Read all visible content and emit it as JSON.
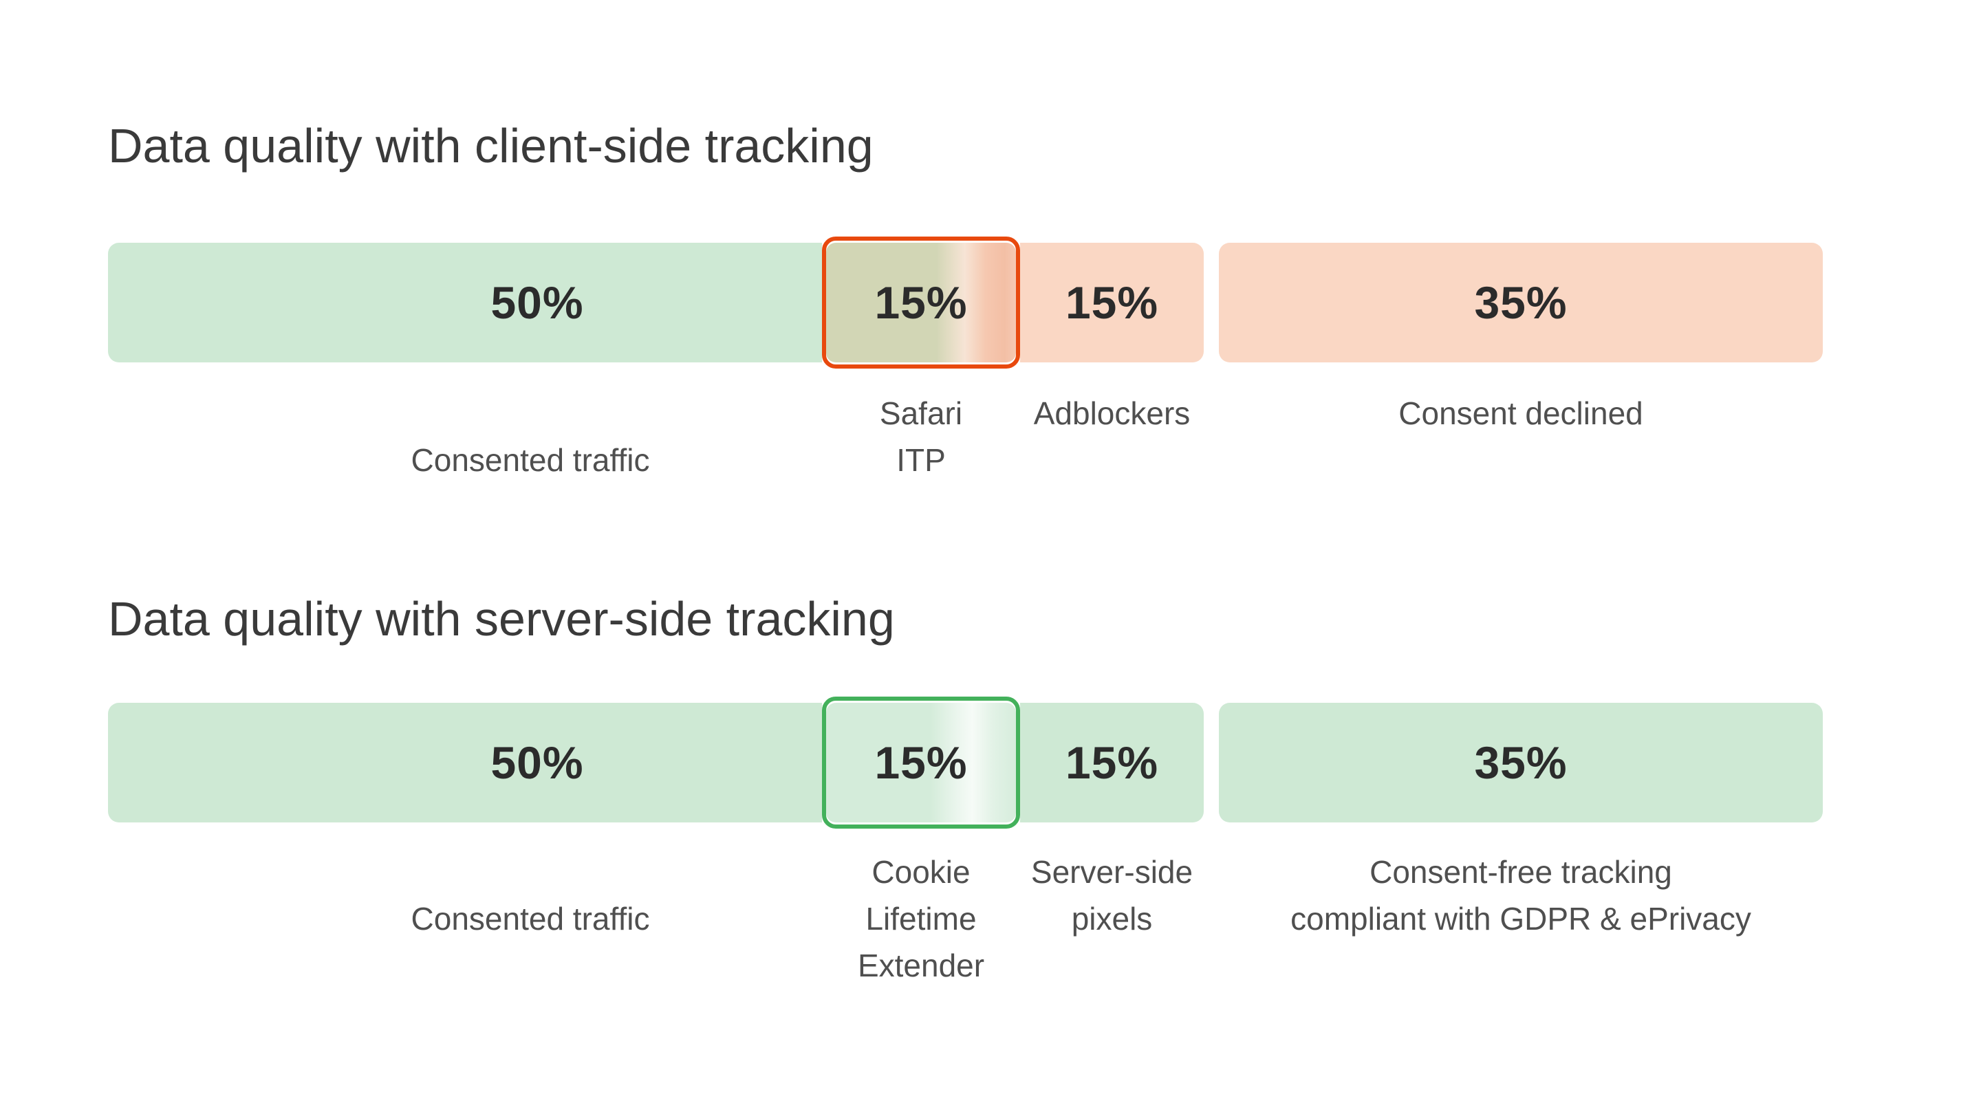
{
  "page": {
    "background": "#ffffff"
  },
  "colors": {
    "green_segment": "#cee9d4",
    "pink_segment": "#fad7c4",
    "client_highlight_border": "#e8490e",
    "server_highlight_border": "#43b15b",
    "olive_blend": "#d2d6b5",
    "salmon_blend": "#f5c2a9",
    "title_text": "#3a3a3a",
    "label_text": "#4f4f4f",
    "value_text": "#2b2b2b"
  },
  "chart_data": [
    {
      "type": "bar",
      "variant": "horizontal-stacked",
      "title": "Data quality with client-side tracking",
      "unit": "%",
      "grid": false,
      "legend_position": "none",
      "segments": [
        {
          "value": 50,
          "value_label": "50%",
          "label": "Consented traffic",
          "fill": "green",
          "highlighted": false
        },
        {
          "value": 15,
          "value_label": "15%",
          "label": "Safari\nITP",
          "fill": "green-to-pink-gradient",
          "highlighted": true,
          "highlight_border_color": "#e8490e"
        },
        {
          "value": 15,
          "value_label": "15%",
          "label": "Adblockers",
          "fill": "pink",
          "highlighted": false
        },
        {
          "value": 35,
          "value_label": "35%",
          "label": "Consent declined",
          "fill": "pink",
          "highlighted": false
        }
      ]
    },
    {
      "type": "bar",
      "variant": "horizontal-stacked",
      "title": "Data quality with server-side tracking",
      "unit": "%",
      "grid": false,
      "legend_position": "none",
      "segments": [
        {
          "value": 50,
          "value_label": "50%",
          "label": "Consented traffic",
          "fill": "green",
          "highlighted": false
        },
        {
          "value": 15,
          "value_label": "15%",
          "label": "Cookie\nLifetime\nExtender",
          "fill": "green-sheen-gradient",
          "highlighted": true,
          "highlight_border_color": "#43b15b"
        },
        {
          "value": 15,
          "value_label": "15%",
          "label": "Server-side\npixels",
          "fill": "green",
          "highlighted": false
        },
        {
          "value": 35,
          "value_label": "35%",
          "label": "Consent-free tracking\ncompliant with GDPR & ePrivacy",
          "fill": "green",
          "highlighted": false
        }
      ]
    }
  ]
}
